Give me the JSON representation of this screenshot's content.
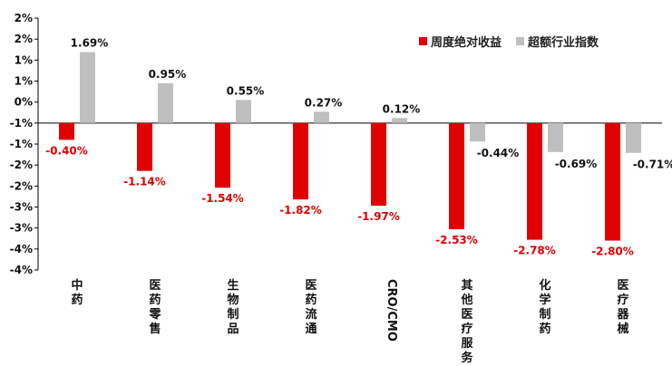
{
  "chart_data": {
    "type": "bar",
    "categories": [
      "中药",
      "医药零售",
      "生物制品",
      "医药流通",
      "CRO/CMO",
      "其他医疗服务",
      "化学制药",
      "医疗器械"
    ],
    "series": [
      {
        "name": "周度绝对收益",
        "values": [
          -0.4,
          -1.14,
          -1.54,
          -1.82,
          -1.97,
          -2.53,
          -2.78,
          -2.8
        ],
        "color": "#e00000"
      },
      {
        "name": "超额行业指数",
        "values": [
          1.69,
          0.95,
          0.55,
          0.27,
          0.12,
          -0.44,
          -0.69,
          -0.71
        ],
        "color": "#bfbfbf"
      }
    ],
    "data_labels": {
      "series0": [
        "-0.40%",
        "-1.14%",
        "-1.54%",
        "-1.82%",
        "-1.97%",
        "-2.53%",
        "-2.78%",
        "-2.80%"
      ],
      "series1": [
        "1.69%",
        "0.95%",
        "0.55%",
        "0.27%",
        "0.12%",
        "-0.44%",
        "-0.69%",
        "-0.71%"
      ]
    },
    "ytick_labels": [
      "2%",
      "2%",
      "1%",
      "1%",
      "0%",
      "-1%",
      "-1%",
      "-2%",
      "-2%",
      "-3%",
      "-3%",
      "-4%",
      "-4%"
    ],
    "ylim": [
      -3.5,
      2.5
    ],
    "title": "",
    "xlabel": "",
    "ylabel": "",
    "legend_position": "top-right",
    "grid": false
  }
}
